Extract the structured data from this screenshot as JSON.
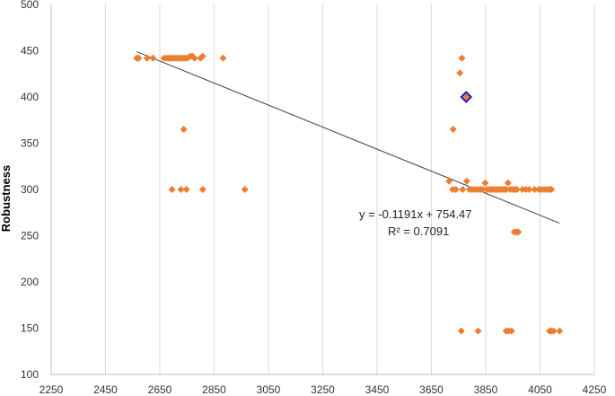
{
  "chart_data": {
    "type": "scatter",
    "title": "",
    "xlabel": "",
    "ylabel": "Robustness",
    "xlim": [
      2250,
      4250
    ],
    "ylim": [
      100,
      500
    ],
    "xticks": [
      2250,
      2450,
      2650,
      2850,
      3050,
      3250,
      3450,
      3650,
      3850,
      4050,
      4250
    ],
    "yticks": [
      100,
      150,
      200,
      250,
      300,
      350,
      400,
      450,
      500
    ],
    "grid": "vertical",
    "legend": "none",
    "colors": {
      "points": "#ED7D31",
      "highlight_fill": "#ED7D31",
      "highlight_stroke": "#1F1FCC",
      "trendline": "#404040",
      "grid": "#D9D9D9",
      "axis": "#BFBFBF"
    },
    "series": [
      {
        "points": [
          [
            2565,
            442
          ],
          [
            2572,
            442
          ],
          [
            2603,
            442
          ],
          [
            2625,
            442
          ],
          [
            2665,
            442
          ],
          [
            2675,
            442
          ],
          [
            2683,
            442
          ],
          [
            2690,
            442
          ],
          [
            2698,
            442
          ],
          [
            2705,
            442
          ],
          [
            2712,
            442
          ],
          [
            2720,
            442
          ],
          [
            2728,
            442
          ],
          [
            2736,
            442
          ],
          [
            2743,
            442
          ],
          [
            2752,
            442
          ],
          [
            2762,
            444
          ],
          [
            2770,
            444
          ],
          [
            2778,
            442
          ],
          [
            2800,
            442
          ],
          [
            2808,
            444
          ],
          [
            2883,
            442
          ],
          [
            2738,
            365
          ],
          [
            2695,
            300
          ],
          [
            2728,
            300
          ],
          [
            2748,
            300
          ],
          [
            2808,
            300
          ],
          [
            2963,
            300
          ],
          [
            3762,
            442
          ],
          [
            3755,
            426
          ],
          [
            3730,
            365
          ],
          [
            3715,
            309
          ],
          [
            3780,
            309
          ],
          [
            3740,
            300
          ],
          [
            3728,
            300
          ],
          [
            3765,
            300
          ],
          [
            3790,
            300
          ],
          [
            3800,
            300
          ],
          [
            3810,
            300
          ],
          [
            3820,
            300
          ],
          [
            3830,
            300
          ],
          [
            3840,
            300
          ],
          [
            3848,
            307
          ],
          [
            3855,
            300
          ],
          [
            3865,
            300
          ],
          [
            3872,
            300
          ],
          [
            3880,
            300
          ],
          [
            3888,
            300
          ],
          [
            3895,
            300
          ],
          [
            3903,
            300
          ],
          [
            3910,
            300
          ],
          [
            3918,
            300
          ],
          [
            3925,
            300
          ],
          [
            3932,
            307
          ],
          [
            3940,
            300
          ],
          [
            3950,
            300
          ],
          [
            3958,
            300
          ],
          [
            3965,
            300
          ],
          [
            3985,
            300
          ],
          [
            3998,
            300
          ],
          [
            4010,
            300
          ],
          [
            4030,
            300
          ],
          [
            4045,
            300
          ],
          [
            4055,
            300
          ],
          [
            4065,
            300
          ],
          [
            4075,
            300
          ],
          [
            4085,
            300
          ],
          [
            4092,
            300
          ],
          [
            3955,
            254
          ],
          [
            3962,
            254
          ],
          [
            3970,
            254
          ],
          [
            3760,
            147
          ],
          [
            3822,
            147
          ],
          [
            3925,
            147
          ],
          [
            3935,
            147
          ],
          [
            3945,
            147
          ],
          [
            4085,
            147
          ],
          [
            4092,
            147
          ],
          [
            4100,
            147
          ],
          [
            4122,
            147
          ]
        ]
      }
    ],
    "highlight_point": [
      3778,
      400
    ],
    "trendline": {
      "slope": -0.1191,
      "intercept": 754.47,
      "x_range": [
        2565,
        4122
      ]
    },
    "annotations": [
      "y = -0.1191x + 754.47",
      "R² = 0.7091"
    ]
  }
}
